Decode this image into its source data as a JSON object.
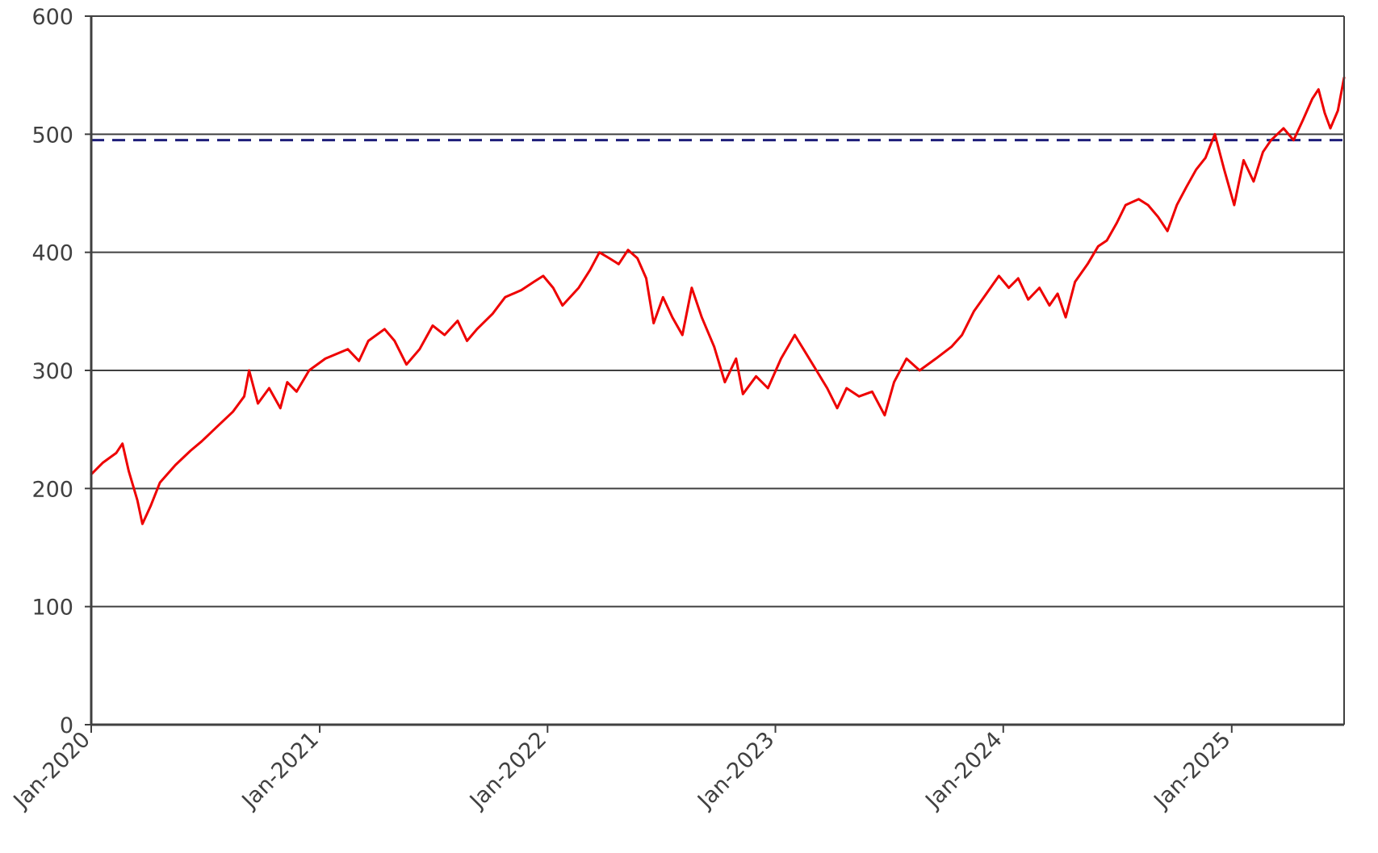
{
  "chart_data": {
    "type": "line",
    "title": "",
    "xlabel": "",
    "ylabel": "",
    "x_axis": {
      "type": "date",
      "min": "2020-01-01",
      "max": "2025-06-30"
    },
    "ylim": [
      0,
      600
    ],
    "y_ticks": [
      0,
      100,
      200,
      300,
      400,
      500,
      600
    ],
    "x_ticks": [
      {
        "date": "2020-01-01",
        "label": "Jan-2020"
      },
      {
        "date": "2021-01-01",
        "label": "Jan-2021"
      },
      {
        "date": "2022-01-01",
        "label": "Jan-2022"
      },
      {
        "date": "2023-01-01",
        "label": "Jan-2023"
      },
      {
        "date": "2024-01-01",
        "label": "Jan-2024"
      },
      {
        "date": "2025-01-01",
        "label": "Jan-2025"
      }
    ],
    "grid": {
      "horizontal": true,
      "vertical": false
    },
    "legend": "none",
    "series": [
      {
        "color": "#ee0000",
        "points": [
          [
            "2020-01-01",
            212
          ],
          [
            "2020-01-20",
            222
          ],
          [
            "2020-02-10",
            230
          ],
          [
            "2020-02-20",
            238
          ],
          [
            "2020-03-01",
            215
          ],
          [
            "2020-03-15",
            190
          ],
          [
            "2020-03-23",
            170
          ],
          [
            "2020-04-05",
            185
          ],
          [
            "2020-04-20",
            205
          ],
          [
            "2020-05-15",
            220
          ],
          [
            "2020-06-08",
            232
          ],
          [
            "2020-06-26",
            240
          ],
          [
            "2020-07-20",
            252
          ],
          [
            "2020-08-15",
            265
          ],
          [
            "2020-09-02",
            278
          ],
          [
            "2020-09-10",
            300
          ],
          [
            "2020-09-24",
            272
          ],
          [
            "2020-10-12",
            285
          ],
          [
            "2020-10-30",
            268
          ],
          [
            "2020-11-10",
            290
          ],
          [
            "2020-11-25",
            282
          ],
          [
            "2020-12-15",
            300
          ],
          [
            "2021-01-10",
            310
          ],
          [
            "2021-02-15",
            318
          ],
          [
            "2021-03-05",
            308
          ],
          [
            "2021-03-20",
            325
          ],
          [
            "2021-04-15",
            335
          ],
          [
            "2021-05-01",
            325
          ],
          [
            "2021-05-20",
            305
          ],
          [
            "2021-06-10",
            318
          ],
          [
            "2021-07-01",
            338
          ],
          [
            "2021-07-20",
            330
          ],
          [
            "2021-08-10",
            342
          ],
          [
            "2021-08-25",
            325
          ],
          [
            "2021-09-10",
            335
          ],
          [
            "2021-10-05",
            348
          ],
          [
            "2021-10-25",
            362
          ],
          [
            "2021-11-20",
            368
          ],
          [
            "2021-12-10",
            375
          ],
          [
            "2021-12-25",
            380
          ],
          [
            "2022-01-10",
            370
          ],
          [
            "2022-01-25",
            355
          ],
          [
            "2022-02-20",
            370
          ],
          [
            "2022-03-10",
            385
          ],
          [
            "2022-03-25",
            400
          ],
          [
            "2022-04-10",
            395
          ],
          [
            "2022-04-25",
            390
          ],
          [
            "2022-05-10",
            402
          ],
          [
            "2022-05-25",
            395
          ],
          [
            "2022-06-08",
            378
          ],
          [
            "2022-06-20",
            340
          ],
          [
            "2022-07-05",
            362
          ],
          [
            "2022-07-20",
            345
          ],
          [
            "2022-08-05",
            330
          ],
          [
            "2022-08-20",
            370
          ],
          [
            "2022-09-05",
            345
          ],
          [
            "2022-09-25",
            320
          ],
          [
            "2022-10-12",
            290
          ],
          [
            "2022-10-30",
            310
          ],
          [
            "2022-11-10",
            280
          ],
          [
            "2022-12-01",
            295
          ],
          [
            "2022-12-20",
            285
          ],
          [
            "2023-01-10",
            310
          ],
          [
            "2023-02-01",
            330
          ],
          [
            "2023-02-15",
            318
          ],
          [
            "2023-03-10",
            298
          ],
          [
            "2023-03-25",
            285
          ],
          [
            "2023-04-10",
            268
          ],
          [
            "2023-04-25",
            285
          ],
          [
            "2023-05-15",
            278
          ],
          [
            "2023-06-05",
            282
          ],
          [
            "2023-06-25",
            262
          ],
          [
            "2023-07-10",
            290
          ],
          [
            "2023-07-30",
            310
          ],
          [
            "2023-08-20",
            300
          ],
          [
            "2023-09-15",
            310
          ],
          [
            "2023-10-10",
            320
          ],
          [
            "2023-10-27",
            330
          ],
          [
            "2023-11-15",
            350
          ],
          [
            "2023-12-05",
            365
          ],
          [
            "2023-12-25",
            380
          ],
          [
            "2024-01-10",
            370
          ],
          [
            "2024-01-25",
            378
          ],
          [
            "2024-02-10",
            360
          ],
          [
            "2024-02-28",
            370
          ],
          [
            "2024-03-15",
            355
          ],
          [
            "2024-03-28",
            365
          ],
          [
            "2024-04-10",
            345
          ],
          [
            "2024-04-25",
            375
          ],
          [
            "2024-05-15",
            390
          ],
          [
            "2024-06-01",
            405
          ],
          [
            "2024-06-15",
            410
          ],
          [
            "2024-07-01",
            425
          ],
          [
            "2024-07-15",
            440
          ],
          [
            "2024-08-05",
            445
          ],
          [
            "2024-08-20",
            440
          ],
          [
            "2024-09-05",
            430
          ],
          [
            "2024-09-20",
            418
          ],
          [
            "2024-10-05",
            440
          ],
          [
            "2024-10-20",
            455
          ],
          [
            "2024-11-05",
            470
          ],
          [
            "2024-11-20",
            480
          ],
          [
            "2024-12-05",
            500
          ],
          [
            "2024-12-20",
            470
          ],
          [
            "2025-01-05",
            440
          ],
          [
            "2025-01-20",
            478
          ],
          [
            "2025-02-05",
            460
          ],
          [
            "2025-02-20",
            485
          ],
          [
            "2025-03-05",
            495
          ],
          [
            "2025-03-25",
            505
          ],
          [
            "2025-04-10",
            495
          ],
          [
            "2025-04-25",
            512
          ],
          [
            "2025-05-10",
            530
          ],
          [
            "2025-05-20",
            538
          ],
          [
            "2025-05-30",
            518
          ],
          [
            "2025-06-08",
            505
          ],
          [
            "2025-06-20",
            520
          ],
          [
            "2025-06-30",
            548
          ]
        ]
      }
    ],
    "reference_lines": [
      {
        "axis": "y",
        "value": 495,
        "style": "dashed",
        "color": "#1f1f7a"
      }
    ]
  }
}
